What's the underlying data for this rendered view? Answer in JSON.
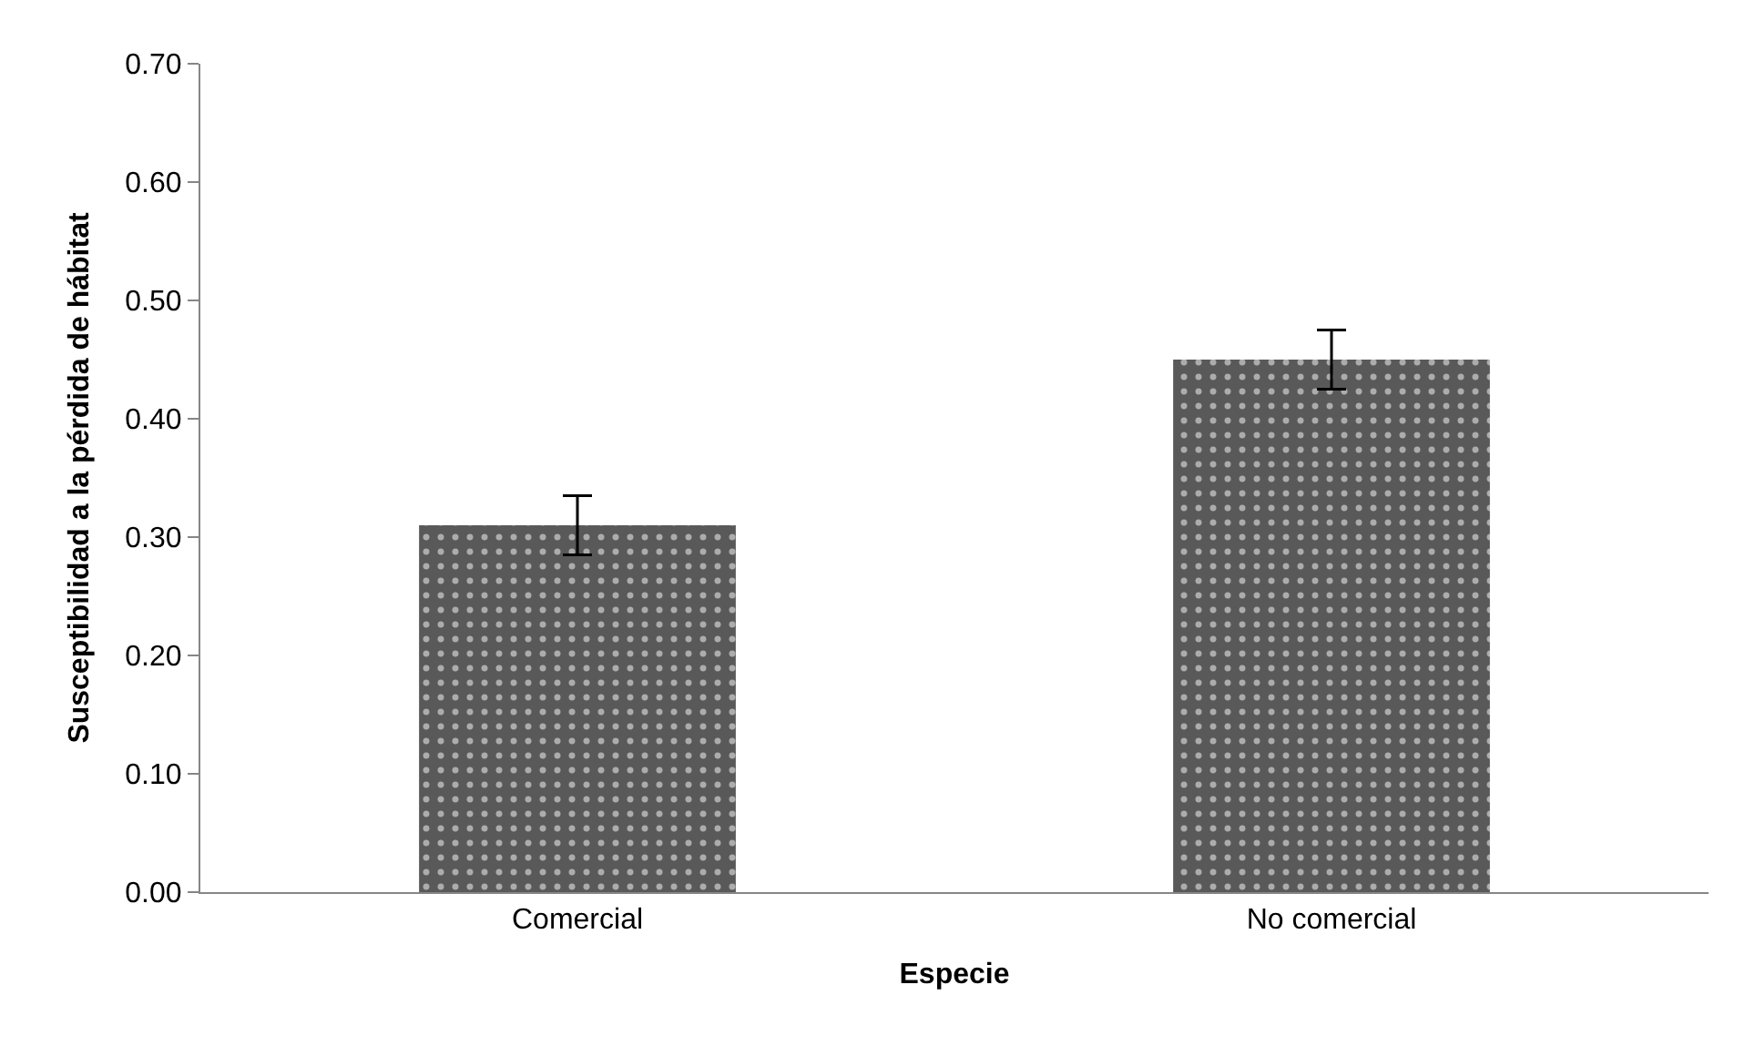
{
  "chart_data": {
    "type": "bar",
    "xlabel": "Especie",
    "ylabel": "Susceptibilidad a la pérdida de hábitat",
    "categories": [
      "Comercial",
      "No comercial"
    ],
    "values": [
      0.31,
      0.45
    ],
    "errors": [
      0.025,
      0.025
    ],
    "color": "#595959",
    "ylim": [
      0,
      0.7
    ],
    "yticks": [
      {
        "value": 0,
        "label": "0.00"
      },
      {
        "value": 0.1,
        "label": "0.10"
      },
      {
        "value": 0.2,
        "label": "0.20"
      },
      {
        "value": 0.3,
        "label": "0.30"
      },
      {
        "value": 0.4,
        "label": "0.40"
      },
      {
        "value": 0.5,
        "label": "0.50"
      },
      {
        "value": 0.6,
        "label": "0.60"
      },
      {
        "value": 0.7,
        "label": "0.70"
      }
    ],
    "legend": false
  }
}
